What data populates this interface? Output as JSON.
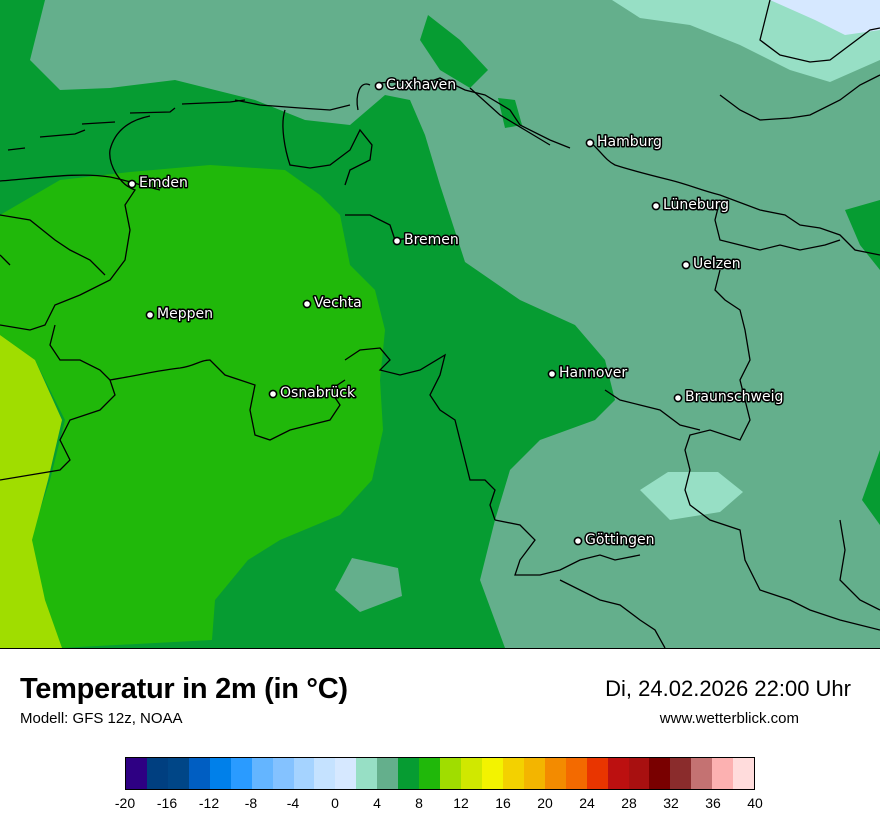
{
  "map": {
    "cities": [
      {
        "name": "Cuxhaven"
      },
      {
        "name": "Hamburg"
      },
      {
        "name": "Emden"
      },
      {
        "name": "Lüneburg"
      },
      {
        "name": "Bremen"
      },
      {
        "name": "Uelzen"
      },
      {
        "name": "Vechta"
      },
      {
        "name": "Meppen"
      },
      {
        "name": "Hannover"
      },
      {
        "name": "Osnabrück"
      },
      {
        "name": "Braunschweig"
      },
      {
        "name": "Göttingen"
      }
    ],
    "colors": {
      "band_0_2": "#d6e8ff",
      "band_2_4": "#97dfc5",
      "band_4_6": "#64af8c",
      "band_6_8": "#069c32",
      "band_8_10": "#20b80a",
      "band_10_12": "#a0dd00",
      "border": "#000000"
    }
  },
  "header": {
    "title": "Temperatur in 2m (in °C)",
    "model": "Modell: GFS 12z, NOAA",
    "datetime": "Di, 24.02.2026 22:00 Uhr",
    "website": "www.wetterblick.com"
  },
  "legend": {
    "colors": [
      "#2e0083",
      "#003f80",
      "#004687",
      "#005ec2",
      "#0080ea",
      "#2a9bff",
      "#64b5ff",
      "#84c2ff",
      "#a5d3ff",
      "#c5e2ff",
      "#d6e8ff",
      "#97dfc5",
      "#64af8c",
      "#069c32",
      "#20b80a",
      "#a0dd00",
      "#d0e800",
      "#f3f300",
      "#f3d100",
      "#f3b500",
      "#f38b00",
      "#f36a00",
      "#e93500",
      "#bc1010",
      "#a81010",
      "#790000",
      "#8a2c2c",
      "#c47272",
      "#fcb1b1",
      "#ffdcdc"
    ],
    "ticks": [
      "-20",
      "-16",
      "-12",
      "-8",
      "-4",
      "0",
      "4",
      "8",
      "12",
      "16",
      "20",
      "24",
      "28",
      "32",
      "36",
      "40"
    ]
  }
}
